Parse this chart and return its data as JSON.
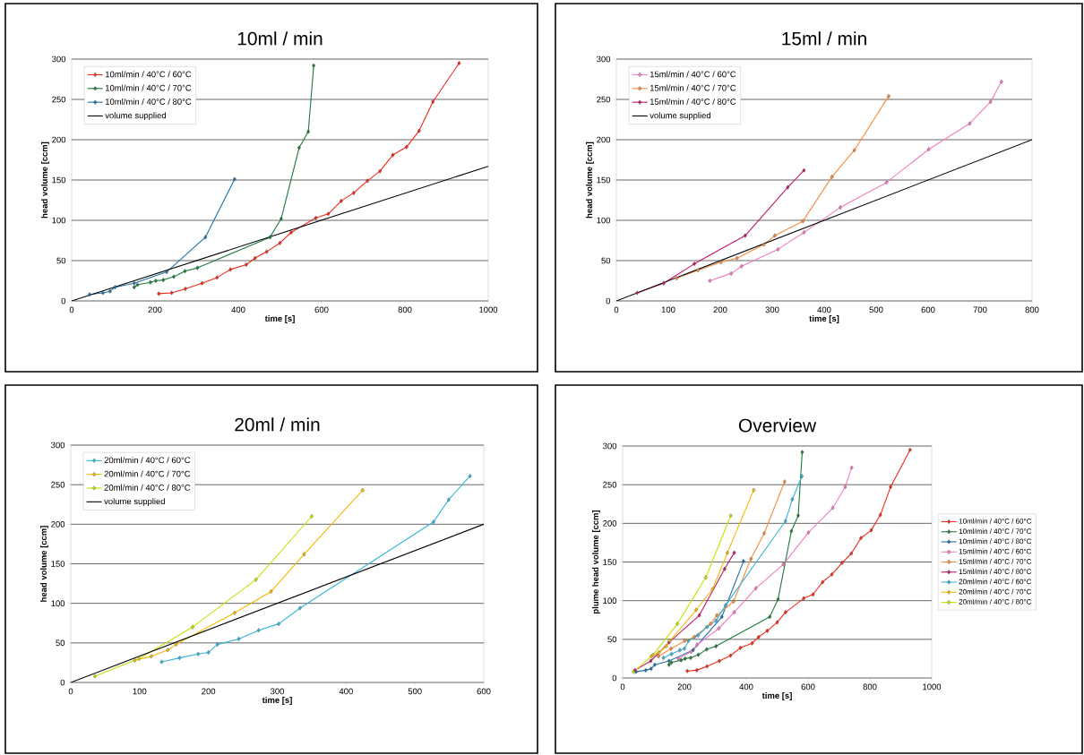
{
  "chart_data": [
    {
      "type": "line",
      "title": "10ml / min",
      "xlabel": "time [s]",
      "ylabel": "head volume [ccm]",
      "xlim": [
        0,
        1000
      ],
      "ylim": [
        0,
        300
      ],
      "xticks": [
        0,
        200,
        400,
        600,
        800,
        1000
      ],
      "yticks": [
        0,
        50,
        100,
        150,
        200,
        250,
        300
      ],
      "grid": "y",
      "legend": "top left",
      "marker": "diamond",
      "series": [
        {
          "name": "10ml/min / 40°C / 60°C",
          "color": "#f02a1a",
          "x": [
            209,
            240,
            273,
            313,
            349,
            381,
            419,
            440,
            468,
            500,
            527,
            586,
            616,
            647,
            677,
            710,
            740,
            771,
            804,
            834,
            867,
            930
          ],
          "values": [
            9,
            10,
            15,
            22,
            29,
            39,
            45,
            53,
            61,
            72,
            85,
            103,
            108,
            124,
            134,
            149,
            161,
            181,
            191,
            211,
            247,
            295
          ]
        },
        {
          "name": "10ml/min / 40°C / 70°C",
          "color": "#1e7a3c",
          "x": [
            150,
            158,
            189,
            202,
            220,
            245,
            272,
            302,
            476,
            503,
            546,
            568,
            581
          ],
          "values": [
            17,
            20,
            23,
            25,
            26,
            30,
            37,
            41,
            79,
            102,
            190,
            210,
            292
          ]
        },
        {
          "name": "10ml/min / 40°C / 80°C",
          "color": "#1f6fa8",
          "x": [
            43,
            75,
            92,
            104,
            150,
            228,
            321,
            391
          ],
          "values": [
            8,
            10,
            12,
            17,
            22,
            36,
            79,
            151
          ]
        },
        {
          "name": "volume supplied",
          "color": "#000000",
          "x": [
            0,
            1000
          ],
          "values": [
            0,
            167
          ],
          "marker": "none"
        }
      ]
    },
    {
      "type": "line",
      "title": "15ml / min",
      "xlabel": "time [s]",
      "ylabel": "head volume [ccm]",
      "xlim": [
        0,
        800
      ],
      "ylim": [
        0,
        300
      ],
      "xticks": [
        0,
        100,
        200,
        300,
        400,
        500,
        600,
        700,
        800
      ],
      "yticks": [
        0,
        50,
        100,
        150,
        200,
        250,
        300
      ],
      "grid": "y",
      "legend": "top left",
      "marker": "diamond",
      "series": [
        {
          "name": "15ml/min / 40°C / 60°C",
          "color": "#f07cc0",
          "x": [
            180,
            221,
            241,
            311,
            361,
            431,
            520,
            601,
            680,
            720,
            741
          ],
          "values": [
            25,
            34,
            43,
            64,
            85,
            116,
            147,
            188,
            220,
            247,
            272
          ]
        },
        {
          "name": "15ml/min / 40°C / 70°C",
          "color": "#f68a3c",
          "x": [
            116,
            157,
            201,
            232,
            284,
            305,
            359,
            415,
            458,
            524
          ],
          "values": [
            28,
            38,
            48,
            53,
            70,
            81,
            99,
            154,
            187,
            254
          ]
        },
        {
          "name": "15ml/min / 40°C / 80°C",
          "color": "#c0186a",
          "x": [
            40,
            91,
            150,
            248,
            330,
            361
          ],
          "values": [
            10,
            22,
            46,
            81,
            141,
            162
          ]
        },
        {
          "name": "volume supplied",
          "color": "#000000",
          "x": [
            0,
            800
          ],
          "values": [
            0,
            200
          ],
          "marker": "none"
        }
      ]
    },
    {
      "type": "line",
      "title": "20ml / min",
      "xlabel": "time [s]",
      "ylabel": "head volume [ccm]",
      "xlim": [
        0,
        600
      ],
      "ylim": [
        0,
        300
      ],
      "xticks": [
        0,
        100,
        200,
        300,
        400,
        500,
        600
      ],
      "yticks": [
        0,
        50,
        100,
        150,
        200,
        250,
        300
      ],
      "grid": "y",
      "legend": "top left",
      "marker": "diamond",
      "series": [
        {
          "name": "20ml/min / 40°C / 60°C",
          "color": "#35b4d8",
          "x": [
            132,
            158,
            185,
            200,
            213,
            244,
            273,
            302,
            333,
            527,
            549,
            580
          ],
          "values": [
            26,
            31,
            36,
            38,
            48,
            55,
            66,
            74,
            94,
            203,
            231,
            261
          ]
        },
        {
          "name": "20ml/min / 40°C / 70°C",
          "color": "#f5b800",
          "x": [
            93,
            117,
            141,
            153,
            238,
            291,
            339,
            424
          ],
          "values": [
            28,
            33,
            41,
            48,
            88,
            115,
            162,
            243
          ]
        },
        {
          "name": "20ml/min / 40°C / 80°C",
          "color": "#c8e000",
          "x": [
            35,
            99,
            177,
            269,
            350
          ],
          "values": [
            8,
            30,
            70,
            130,
            210
          ]
        },
        {
          "name": "volume supplied",
          "color": "#000000",
          "x": [
            0,
            600
          ],
          "values": [
            0,
            200
          ],
          "marker": "none"
        }
      ]
    },
    {
      "type": "line",
      "title": "Overview",
      "xlabel": "time [s]",
      "ylabel": "plume head volume [ccm]",
      "xlim": [
        0,
        1000
      ],
      "ylim": [
        0,
        300
      ],
      "xticks": [
        0,
        200,
        400,
        600,
        800,
        1000
      ],
      "yticks": [
        0,
        50,
        100,
        150,
        200,
        250,
        300
      ],
      "grid": "y",
      "legend": "right",
      "marker": "diamond",
      "series": [
        {
          "name": "10ml/min / 40°C / 60°C",
          "color": "#f02a1a",
          "x": [
            209,
            240,
            273,
            313,
            349,
            381,
            419,
            440,
            468,
            500,
            527,
            586,
            616,
            647,
            677,
            710,
            740,
            771,
            804,
            834,
            867,
            930
          ],
          "values": [
            9,
            10,
            15,
            22,
            29,
            39,
            45,
            53,
            61,
            72,
            85,
            103,
            108,
            124,
            134,
            149,
            161,
            181,
            191,
            211,
            247,
            295
          ]
        },
        {
          "name": "10ml/min / 40°C / 70°C",
          "color": "#1e7a3c",
          "x": [
            150,
            158,
            189,
            202,
            220,
            245,
            272,
            302,
            476,
            503,
            546,
            568,
            581
          ],
          "values": [
            17,
            20,
            23,
            25,
            26,
            30,
            37,
            41,
            79,
            102,
            190,
            210,
            292
          ]
        },
        {
          "name": "10ml/min / 40°C / 80°C",
          "color": "#1f6fa8",
          "x": [
            43,
            75,
            92,
            104,
            150,
            228,
            321,
            391
          ],
          "values": [
            8,
            10,
            12,
            17,
            22,
            36,
            79,
            151
          ]
        },
        {
          "name": "15ml/min / 40°C / 60°C",
          "color": "#f07cc0",
          "x": [
            180,
            221,
            241,
            311,
            361,
            431,
            520,
            601,
            680,
            720,
            741
          ],
          "values": [
            25,
            34,
            43,
            64,
            85,
            116,
            147,
            188,
            220,
            247,
            272
          ]
        },
        {
          "name": "15ml/min / 40°C / 70°C",
          "color": "#f68a3c",
          "x": [
            116,
            157,
            201,
            232,
            284,
            305,
            359,
            415,
            458,
            524
          ],
          "values": [
            28,
            38,
            48,
            53,
            70,
            81,
            99,
            154,
            187,
            254
          ]
        },
        {
          "name": "15ml/min / 40°C / 80°C",
          "color": "#c0186a",
          "x": [
            40,
            91,
            150,
            248,
            330,
            361
          ],
          "values": [
            10,
            22,
            46,
            81,
            141,
            162
          ]
        },
        {
          "name": "20ml/min / 40°C / 60°C",
          "color": "#35b4d8",
          "x": [
            132,
            158,
            185,
            200,
            213,
            244,
            273,
            302,
            333,
            527,
            549,
            580
          ],
          "values": [
            26,
            31,
            36,
            38,
            48,
            55,
            66,
            74,
            94,
            203,
            231,
            261
          ]
        },
        {
          "name": "20ml/min / 40°C / 70°C",
          "color": "#f5b800",
          "x": [
            93,
            117,
            141,
            153,
            238,
            291,
            339,
            424
          ],
          "values": [
            28,
            33,
            41,
            48,
            88,
            115,
            162,
            243
          ]
        },
        {
          "name": "20ml/min / 40°C / 80°C",
          "color": "#c8e000",
          "x": [
            35,
            99,
            177,
            269,
            350
          ],
          "values": [
            8,
            30,
            70,
            130,
            210
          ]
        }
      ]
    }
  ]
}
